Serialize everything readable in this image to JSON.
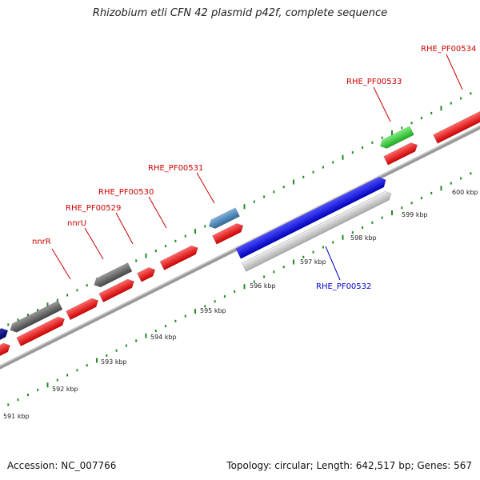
{
  "title": "Rhizobium etli CFN 42 plasmid p42f, complete sequence",
  "footer": {
    "accession": "Accession: NC_007766",
    "summary": "Topology: circular; Length: 642,517 bp; Genes: 567"
  },
  "colors": {
    "forward_gene": "#ff0000",
    "reverse_gene": "#ff0000",
    "hypothetical": "#666666",
    "blue_gene": "#0000ff",
    "steelblue_gene": "#4682b4",
    "green_gene": "#33cc33",
    "grey_light": "#c8c8c8",
    "tick": "#228b22",
    "label_red": "#cc0000",
    "label_blue": "#0000cc",
    "backbone": "#888888"
  },
  "gene_labels": [
    {
      "text": "nnrR",
      "color": "red"
    },
    {
      "text": "nnrU",
      "color": "red"
    },
    {
      "text": "RHE_PF00529",
      "color": "red"
    },
    {
      "text": "RHE_PF00530",
      "color": "red"
    },
    {
      "text": "RHE_PF00531",
      "color": "red"
    },
    {
      "text": "RHE_PF00532",
      "color": "blue"
    },
    {
      "text": "RHE_PF00533",
      "color": "red"
    },
    {
      "text": "RHE_PF00534",
      "color": "red"
    }
  ],
  "kbp_labels": [
    "591 kbp",
    "592 kbp",
    "593 kbp",
    "594 kbp",
    "595 kbp",
    "596 kbp",
    "597 kbp",
    "598 kbp",
    "599 kbp",
    "600 kbp"
  ]
}
